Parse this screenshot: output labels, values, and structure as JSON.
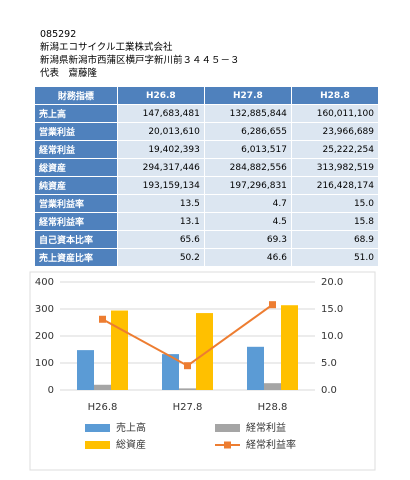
{
  "header": {
    "code": "085292",
    "company": "新潟エコサイクル工業株式会社",
    "address": "新潟県新潟市西蒲区横戸字新川前３４４５－３",
    "representative": "代表　齋藤隆"
  },
  "table": {
    "header": [
      "財務指標",
      "H26.8",
      "H27.8",
      "H28.8"
    ],
    "rows": [
      [
        "売上高",
        "147,683,481",
        "132,885,844",
        "160,011,100"
      ],
      [
        "営業利益",
        "20,013,610",
        "6,286,655",
        "23,966,689"
      ],
      [
        "経常利益",
        "19,402,393",
        "6,013,517",
        "25,222,254"
      ],
      [
        "総資産",
        "294,317,446",
        "284,882,556",
        "313,982,519"
      ],
      [
        "純資産",
        "193,159,134",
        "197,296,831",
        "216,428,174"
      ],
      [
        "営業利益率",
        "13.5",
        "4.7",
        "15.0"
      ],
      [
        "経常利益率",
        "13.1",
        "4.5",
        "15.8"
      ],
      [
        "自己資本比率",
        "65.6",
        "69.3",
        "68.9"
      ],
      [
        "売上資産比率",
        "50.2",
        "46.6",
        "51.0"
      ]
    ]
  },
  "chart_data": {
    "type": "bar",
    "categories": [
      "H26.8",
      "H27.8",
      "H28.8"
    ],
    "series": [
      {
        "name": "売上高",
        "color": "#5b9bd5",
        "values": [
          147.7,
          132.9,
          160.0
        ]
      },
      {
        "name": "経常利益",
        "color": "#a5a5a5",
        "values": [
          19.4,
          6.0,
          25.2
        ]
      },
      {
        "name": "総資産",
        "color": "#ffc000",
        "values": [
          294.3,
          284.9,
          314.0
        ]
      },
      {
        "name": "経常利益率",
        "color": "#ed7d31",
        "type": "line",
        "axis": "y2",
        "values": [
          13.1,
          4.5,
          15.8
        ]
      }
    ],
    "ylim": [
      0,
      400
    ],
    "yticks": [
      0,
      100,
      200,
      300,
      400
    ],
    "y2lim": [
      0,
      20
    ],
    "y2ticks": [
      {
        "value": 0,
        "label": "0.0"
      },
      {
        "value": 5,
        "label": "5.0"
      },
      {
        "value": 10,
        "label": "10.0"
      },
      {
        "value": 15,
        "label": "15.0"
      },
      {
        "value": 20,
        "label": "20.0"
      }
    ],
    "grid": true
  }
}
